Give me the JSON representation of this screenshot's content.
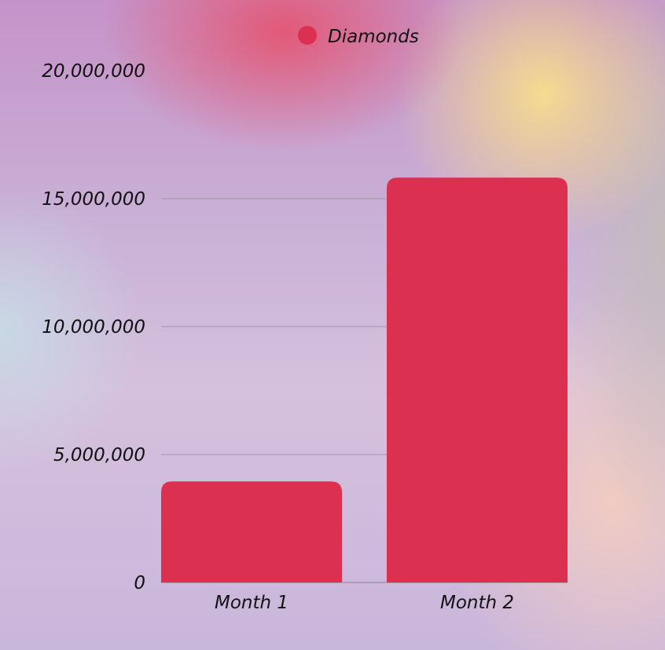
{
  "chart_data": {
    "type": "bar",
    "categories": [
      "Month 1",
      "Month 2"
    ],
    "series": [
      {
        "name": "Diamonds",
        "values": [
          3950000,
          15820000
        ],
        "color": "#dc3051"
      }
    ],
    "ylim": [
      0,
      20000000
    ],
    "yticks": [
      0,
      5000000,
      10000000,
      15000000,
      20000000
    ],
    "ytick_labels": [
      "0",
      "5,000,000",
      "10,000,000",
      "15,000,000",
      "20,000,000"
    ],
    "xtick_labels": [
      "Month 1",
      "Month 2"
    ],
    "grid": true,
    "legend": {
      "position": "top-center",
      "entries": [
        "Diamonds"
      ]
    },
    "colors": {
      "bar": "#dc3051",
      "grid": "#9f97a6",
      "text": "#111111"
    }
  }
}
